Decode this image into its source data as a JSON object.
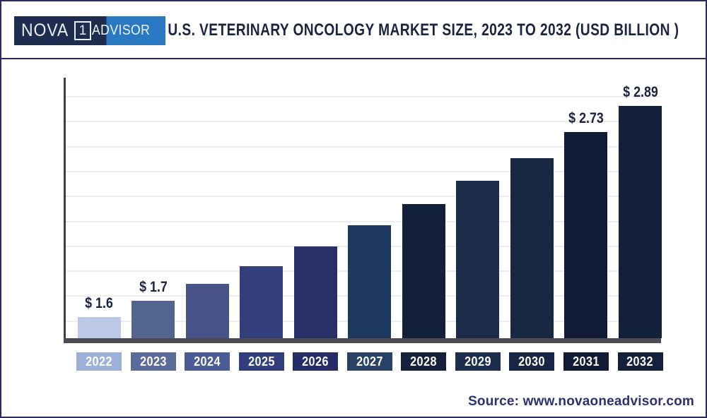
{
  "header": {
    "logo": {
      "left": "NOVA",
      "number": "1",
      "right": "ADVISOR"
    },
    "title": "U.S. VETERINARY ONCOLOGY MARKET SIZE, 2023 TO 2032 (USD BILLION )"
  },
  "chart_data": {
    "type": "bar",
    "title": "U.S. Veterinary Oncology Market Size, 2023 to 2032 (USD Billion)",
    "categories": [
      "2022",
      "2023",
      "2024",
      "2025",
      "2026",
      "2027",
      "2028",
      "2029",
      "2030",
      "2031",
      "2032"
    ],
    "values": [
      1.6,
      1.7,
      1.8,
      1.91,
      2.03,
      2.16,
      2.29,
      2.43,
      2.57,
      2.73,
      2.89
    ],
    "value_labels": [
      "$ 1.6",
      "$ 1.7",
      "",
      "",
      "",
      "",
      "",
      "",
      "",
      "$ 2.73",
      "$ 2.89"
    ],
    "bar_colors": [
      "#bdc8e6",
      "#53648f",
      "#475289",
      "#333f7b",
      "#282f69",
      "#1f3a60",
      "#13203c",
      "#1b2b49",
      "#182742",
      "#111b35",
      "#12203a"
    ],
    "tick_colors": [
      "#9db0d8",
      "#5a6b9b",
      "#4b5b94",
      "#333f7d",
      "#242d67",
      "#2a4166",
      "#15213d",
      "#1c2d4d",
      "#162643",
      "#111b35",
      "#14213d"
    ],
    "xlabel": "",
    "ylabel": "",
    "ylim": [
      1.47,
      3.06
    ],
    "grid": "horizontal",
    "legend": "none"
  },
  "footer": {
    "source": "Source: www.novaoneadvisor.com"
  }
}
